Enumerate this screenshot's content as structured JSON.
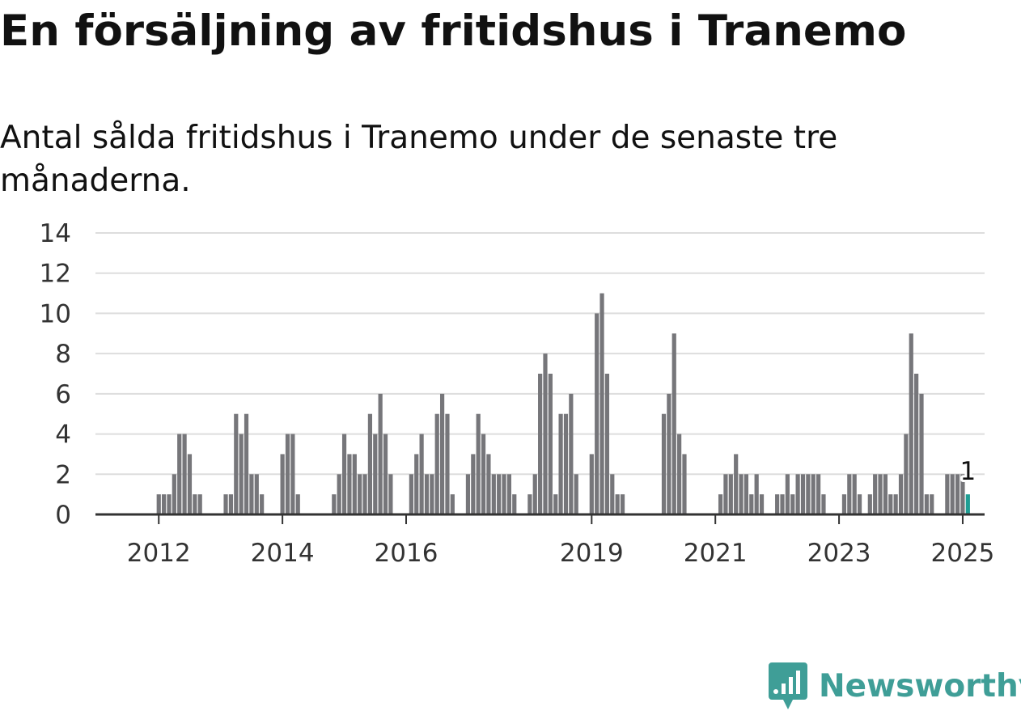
{
  "title": "En försäljning av fritidshus i Tranemo",
  "subtitle": "Antal sålda fritidshus i Tranemo under de senaste tre månaderna.",
  "brand": "Newsworthy",
  "colors": {
    "bar": "#76767a",
    "highlight": "#1f9e94",
    "brand": "#3f9e97"
  },
  "chart_data": {
    "type": "bar",
    "ylim": [
      0,
      14
    ],
    "yticks": [
      0,
      2,
      4,
      6,
      8,
      10,
      12,
      14
    ],
    "xticks": [
      "2012",
      "2014",
      "2016",
      "2019",
      "2021",
      "2023",
      "2025"
    ],
    "grid": true,
    "start": "2011-01",
    "end": "2025-02",
    "values": [
      0,
      0,
      0,
      0,
      0,
      0,
      0,
      0,
      0,
      0,
      0,
      0,
      1,
      1,
      1,
      2,
      4,
      4,
      3,
      1,
      1,
      0,
      0,
      0,
      0,
      1,
      1,
      5,
      4,
      5,
      2,
      2,
      1,
      0,
      0,
      0,
      3,
      4,
      4,
      1,
      0,
      0,
      0,
      0,
      0,
      0,
      1,
      2,
      4,
      3,
      3,
      2,
      2,
      5,
      4,
      6,
      4,
      2,
      0,
      0,
      0,
      2,
      3,
      4,
      2,
      2,
      5,
      6,
      5,
      1,
      0,
      0,
      2,
      3,
      5,
      4,
      3,
      2,
      2,
      2,
      2,
      1,
      0,
      0,
      1,
      2,
      7,
      8,
      7,
      1,
      5,
      5,
      6,
      2,
      0,
      0,
      3,
      10,
      11,
      7,
      2,
      1,
      1,
      0,
      0,
      0,
      0,
      0,
      0,
      0,
      5,
      6,
      9,
      4,
      3,
      0,
      0,
      0,
      0,
      0,
      0,
      1,
      2,
      2,
      3,
      2,
      2,
      1,
      2,
      1,
      0,
      0,
      1,
      1,
      2,
      1,
      2,
      2,
      2,
      2,
      2,
      1,
      0,
      0,
      0,
      1,
      2,
      2,
      1,
      0,
      1,
      2,
      2,
      2,
      1,
      1,
      2,
      4,
      9,
      7,
      6,
      1,
      1,
      0,
      0,
      2,
      2,
      2,
      2,
      1
    ],
    "highlight_last": true,
    "highlight_label": "1"
  }
}
